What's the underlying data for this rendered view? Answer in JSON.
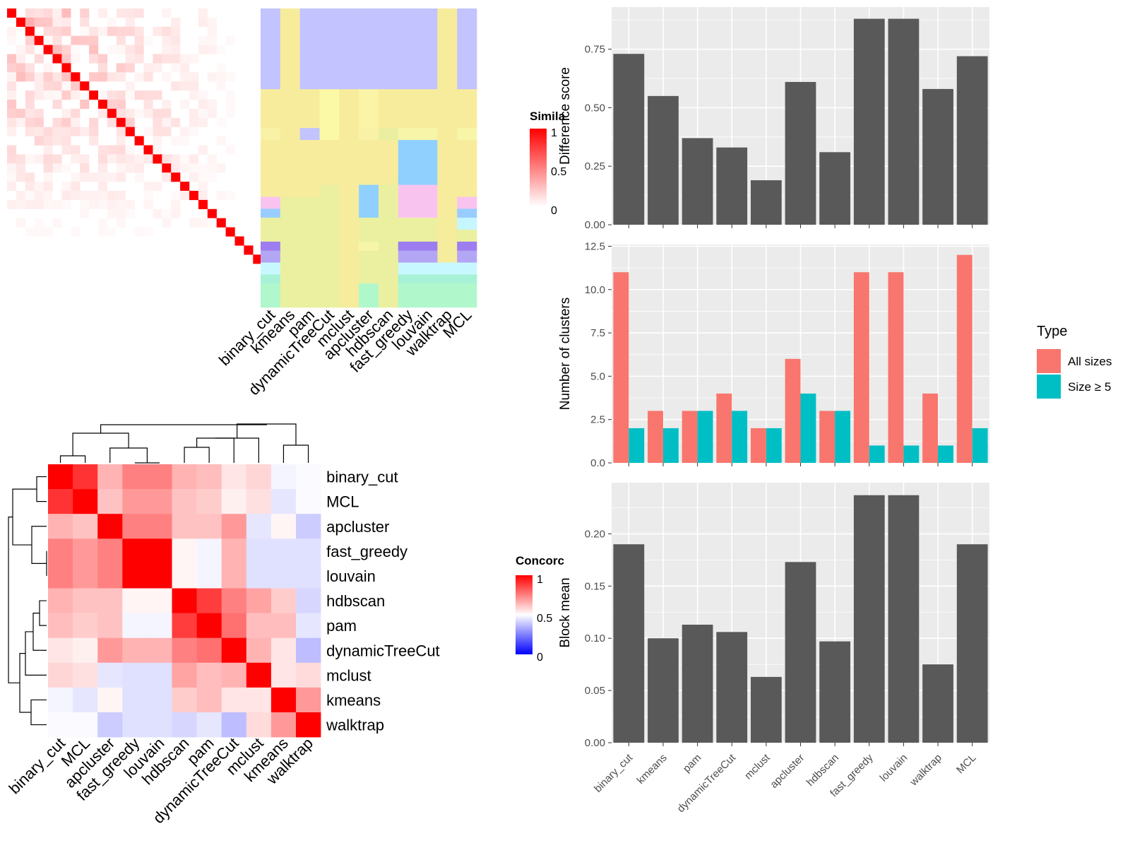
{
  "labels": [
    "binary_cut",
    "kmeans",
    "pam",
    "dynamicTreeCut",
    "mclust",
    "apcluster",
    "hdbscan",
    "fast_greedy",
    "louvain",
    "walktrap",
    "MCL"
  ],
  "similarity_legend": {
    "title": "Simila",
    "ticks": [
      "1",
      "0.5",
      "0"
    ]
  },
  "concordance_legend": {
    "title": "Concorc",
    "ticks": [
      "1",
      "0.5",
      "0"
    ]
  },
  "type_legend": {
    "title": "Type",
    "items": [
      "All sizes",
      "Size ≥ 5"
    ],
    "colors": [
      "#F8766D",
      "#00BFC4"
    ]
  },
  "bar_color": "#595959",
  "chart_data": [
    {
      "type": "bar",
      "title": "",
      "xlabel": "",
      "ylabel": "Difference score",
      "categories": [
        "binary_cut",
        "kmeans",
        "pam",
        "dynamicTreeCut",
        "mclust",
        "apcluster",
        "hdbscan",
        "fast_greedy",
        "louvain",
        "walktrap",
        "MCL"
      ],
      "values": [
        0.73,
        0.55,
        0.37,
        0.33,
        0.19,
        0.61,
        0.31,
        0.88,
        0.88,
        0.58,
        0.72
      ],
      "ylim": [
        0,
        0.93
      ],
      "yticks": [
        0,
        0.25,
        0.5,
        0.75
      ],
      "yticklabels": [
        "0.00",
        "0.25",
        "0.50",
        "0.75"
      ],
      "grid": true
    },
    {
      "type": "bar",
      "title": "",
      "xlabel": "",
      "ylabel": "Number of clusters",
      "categories": [
        "binary_cut",
        "kmeans",
        "pam",
        "dynamicTreeCut",
        "mclust",
        "apcluster",
        "hdbscan",
        "fast_greedy",
        "louvain",
        "walktrap",
        "MCL"
      ],
      "series": [
        {
          "name": "All sizes",
          "values": [
            11,
            3,
            3,
            4,
            2,
            6,
            3,
            11,
            11,
            4,
            12
          ]
        },
        {
          "name": "Size ≥ 5",
          "values": [
            2,
            2,
            3,
            3,
            2,
            4,
            3,
            1,
            1,
            1,
            2
          ]
        }
      ],
      "ylim": [
        0,
        12.6
      ],
      "yticks": [
        0,
        2.5,
        5,
        7.5,
        10,
        12.5
      ],
      "yticklabels": [
        "0.0",
        "2.5",
        "5.0",
        "7.5",
        "10.0",
        "12.5"
      ],
      "legend_position": "right",
      "grid": true
    },
    {
      "type": "bar",
      "title": "",
      "xlabel": "",
      "ylabel": "Block mean",
      "categories": [
        "binary_cut",
        "kmeans",
        "pam",
        "dynamicTreeCut",
        "mclust",
        "apcluster",
        "hdbscan",
        "fast_greedy",
        "louvain",
        "walktrap",
        "MCL"
      ],
      "values": [
        0.19,
        0.1,
        0.113,
        0.106,
        0.063,
        0.173,
        0.097,
        0.237,
        0.237,
        0.075,
        0.19
      ],
      "ylim": [
        0,
        0.249
      ],
      "yticks": [
        0,
        0.05,
        0.1,
        0.15,
        0.2
      ],
      "yticklabels": [
        "0.00",
        "0.05",
        "0.10",
        "0.15",
        "0.20"
      ],
      "grid": true
    },
    {
      "type": "heatmap",
      "title": "",
      "xlabel": "",
      "ylabel": "",
      "rows": [
        "binary_cut",
        "MCL",
        "apcluster",
        "fast_greedy",
        "louvain",
        "hdbscan",
        "pam",
        "dynamicTreeCut",
        "mclust",
        "kmeans",
        "walktrap"
      ],
      "columns": [
        "binary_cut",
        "MCL",
        "apcluster",
        "fast_greedy",
        "louvain",
        "hdbscan",
        "pam",
        "dynamicTreeCut",
        "mclust",
        "kmeans",
        "walktrap"
      ],
      "values": [
        [
          1.0,
          0.9,
          0.65,
          0.75,
          0.75,
          0.65,
          0.63,
          0.55,
          0.58,
          0.48,
          0.49
        ],
        [
          0.9,
          1.0,
          0.62,
          0.7,
          0.7,
          0.62,
          0.6,
          0.53,
          0.56,
          0.45,
          0.49
        ],
        [
          0.65,
          0.62,
          1.0,
          0.75,
          0.75,
          0.62,
          0.62,
          0.7,
          0.45,
          0.52,
          0.4
        ],
        [
          0.75,
          0.7,
          0.75,
          1.0,
          1.0,
          0.52,
          0.48,
          0.65,
          0.44,
          0.44,
          0.44
        ],
        [
          0.75,
          0.7,
          0.75,
          1.0,
          1.0,
          0.52,
          0.48,
          0.65,
          0.44,
          0.44,
          0.44
        ],
        [
          0.65,
          0.62,
          0.62,
          0.52,
          0.52,
          1.0,
          0.88,
          0.75,
          0.68,
          0.6,
          0.42
        ],
        [
          0.63,
          0.6,
          0.62,
          0.48,
          0.48,
          0.88,
          1.0,
          0.78,
          0.63,
          0.63,
          0.45
        ],
        [
          0.55,
          0.53,
          0.7,
          0.65,
          0.65,
          0.75,
          0.78,
          1.0,
          0.65,
          0.55,
          0.37
        ],
        [
          0.58,
          0.56,
          0.45,
          0.44,
          0.44,
          0.68,
          0.63,
          0.65,
          1.0,
          0.55,
          0.57
        ],
        [
          0.48,
          0.45,
          0.52,
          0.44,
          0.44,
          0.6,
          0.63,
          0.55,
          0.55,
          1.0,
          0.7
        ],
        [
          0.49,
          0.49,
          0.4,
          0.44,
          0.44,
          0.42,
          0.45,
          0.37,
          0.57,
          0.7,
          1.0
        ]
      ],
      "color_scale": [
        "#0000FF",
        "#FFFFFF",
        "#FF0000"
      ],
      "range": [
        0,
        1
      ]
    },
    {
      "type": "heatmap",
      "title": "",
      "xlabel": "",
      "ylabel": "",
      "columns": [
        "binary_cut",
        "kmeans",
        "pam",
        "dynamicTreeCut",
        "mclust",
        "apcluster",
        "hdbscan",
        "fast_greedy",
        "louvain",
        "walktrap",
        "MCL"
      ],
      "rows": 40,
      "color_scale": [
        "#FFFFFF",
        "#FF0000"
      ],
      "range": [
        0,
        1
      ]
    }
  ]
}
